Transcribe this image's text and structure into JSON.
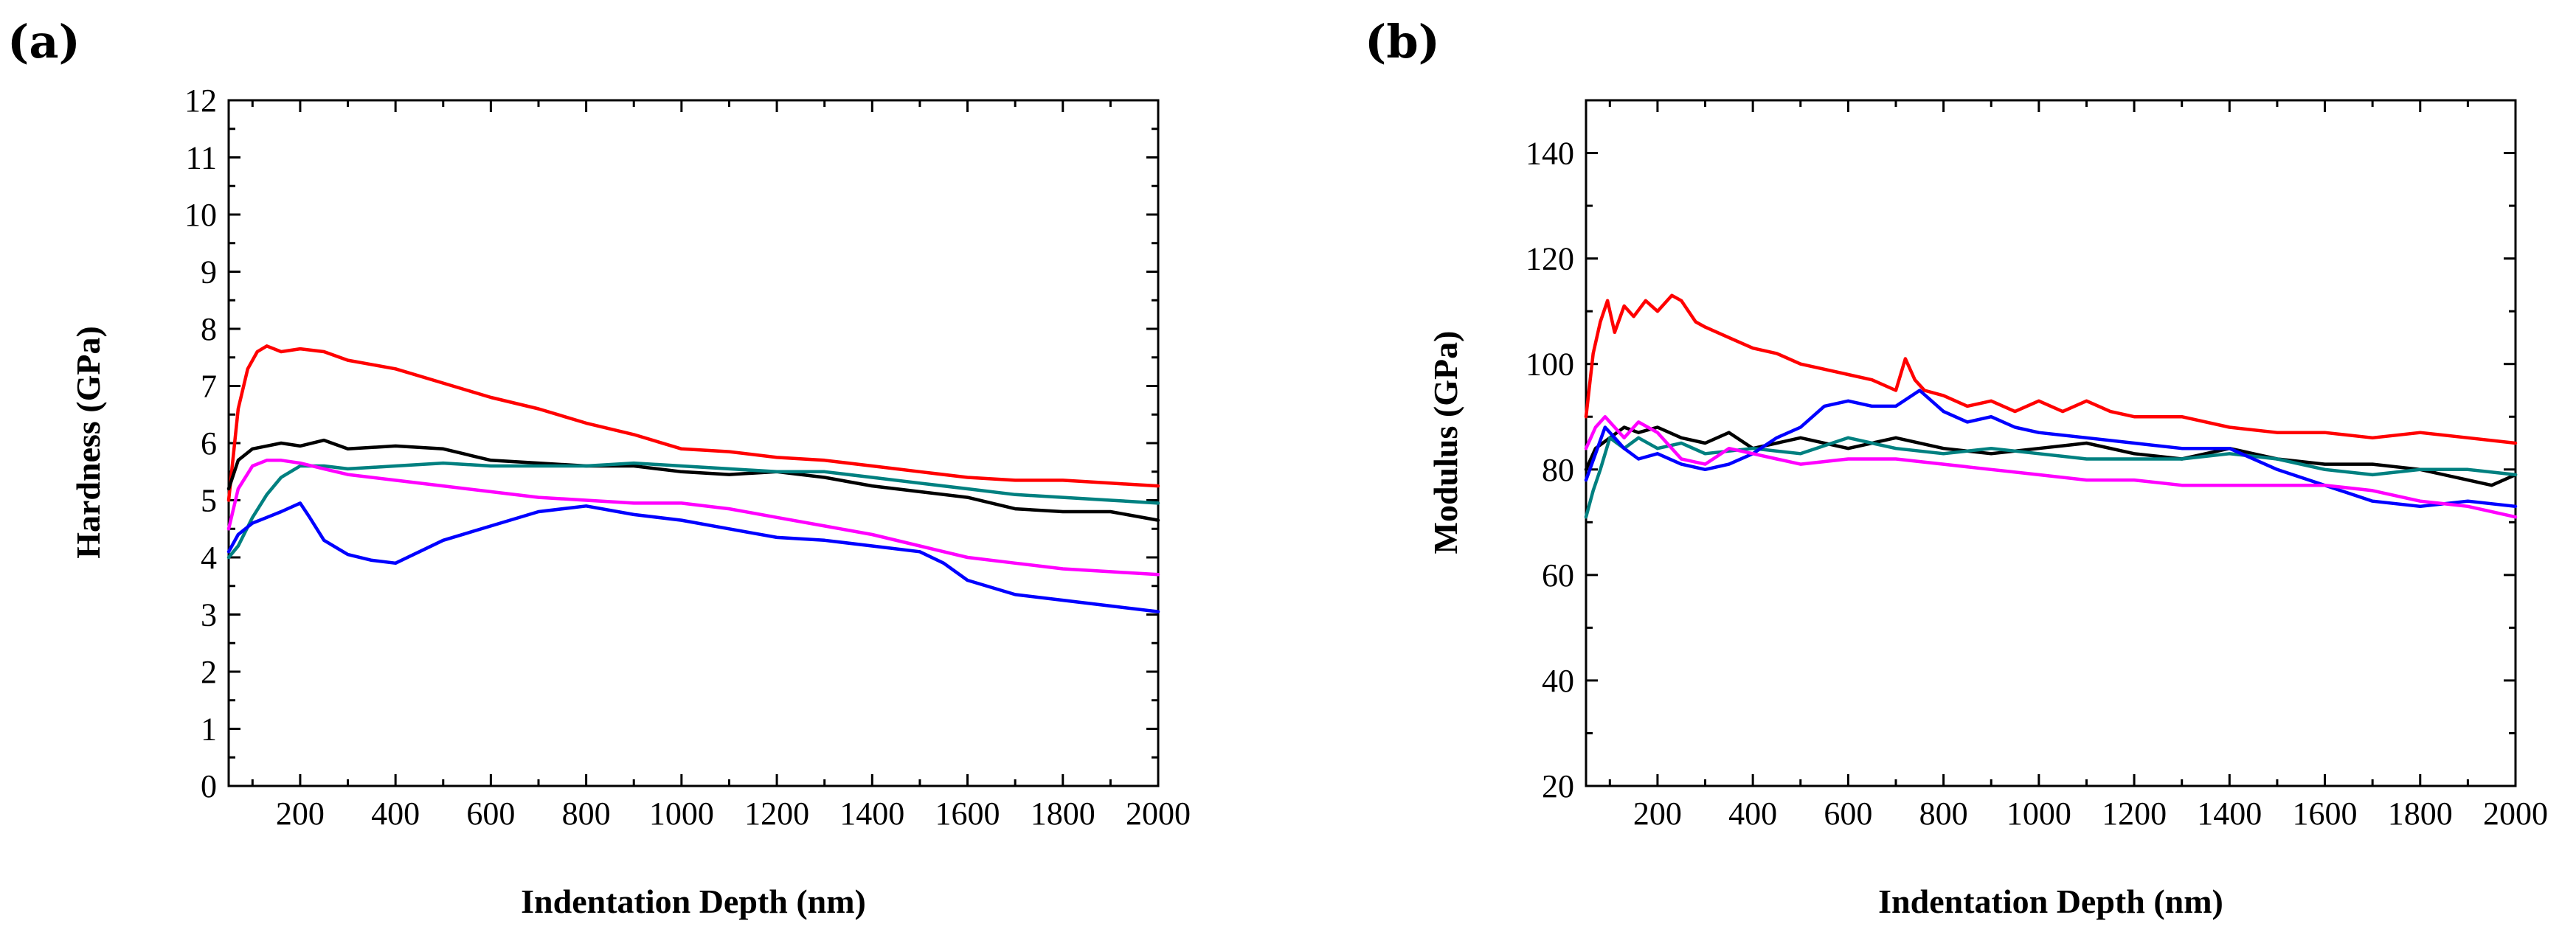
{
  "chart_data": [
    {
      "type": "line",
      "panel_label": "(a)",
      "xlabel": "Indentation Depth (nm)",
      "ylabel": "Hardness (GPa)",
      "xlim": [
        50,
        2000
      ],
      "ylim": [
        0,
        12
      ],
      "xticks": [
        "200",
        "400",
        "600",
        "800",
        "1000",
        "1200",
        "1400",
        "1600",
        "1800",
        "2000"
      ],
      "yticks": [
        "0",
        "1",
        "2",
        "3",
        "4",
        "5",
        "6",
        "7",
        "8",
        "9",
        "10",
        "11",
        "12"
      ],
      "series": [
        {
          "name": "red",
          "color": "#ff0000",
          "x": [
            50,
            70,
            90,
            110,
            130,
            160,
            200,
            250,
            300,
            400,
            500,
            600,
            700,
            800,
            900,
            1000,
            1100,
            1200,
            1300,
            1400,
            1500,
            1600,
            1700,
            1800,
            1900,
            2000
          ],
          "y": [
            5.0,
            6.6,
            7.3,
            7.6,
            7.7,
            7.6,
            7.65,
            7.6,
            7.45,
            7.3,
            7.05,
            6.8,
            6.6,
            6.35,
            6.15,
            5.9,
            5.85,
            5.75,
            5.7,
            5.6,
            5.5,
            5.4,
            5.35,
            5.35,
            5.3,
            5.25
          ]
        },
        {
          "name": "black",
          "color": "#000000",
          "x": [
            50,
            70,
            100,
            130,
            160,
            200,
            250,
            300,
            400,
            500,
            600,
            700,
            800,
            900,
            1000,
            1100,
            1200,
            1300,
            1400,
            1500,
            1600,
            1700,
            1800,
            1900,
            2000
          ],
          "y": [
            5.2,
            5.7,
            5.9,
            5.95,
            6.0,
            5.95,
            6.05,
            5.9,
            5.95,
            5.9,
            5.7,
            5.65,
            5.6,
            5.6,
            5.5,
            5.45,
            5.5,
            5.4,
            5.25,
            5.15,
            5.05,
            4.85,
            4.8,
            4.8,
            4.65
          ]
        },
        {
          "name": "teal",
          "color": "#008080",
          "x": [
            50,
            70,
            100,
            130,
            160,
            200,
            250,
            300,
            400,
            500,
            600,
            700,
            800,
            900,
            1000,
            1100,
            1200,
            1300,
            1400,
            1500,
            1600,
            1700,
            1800,
            1900,
            2000
          ],
          "y": [
            4.0,
            4.2,
            4.7,
            5.1,
            5.4,
            5.6,
            5.6,
            5.55,
            5.6,
            5.65,
            5.6,
            5.6,
            5.6,
            5.65,
            5.6,
            5.55,
            5.5,
            5.5,
            5.4,
            5.3,
            5.2,
            5.1,
            5.05,
            5.0,
            4.95
          ]
        },
        {
          "name": "magenta",
          "color": "#ff00ff",
          "x": [
            50,
            70,
            100,
            130,
            160,
            200,
            250,
            300,
            400,
            500,
            600,
            700,
            800,
            900,
            1000,
            1100,
            1200,
            1300,
            1400,
            1500,
            1600,
            1700,
            1800,
            1900,
            2000
          ],
          "y": [
            4.5,
            5.2,
            5.6,
            5.7,
            5.7,
            5.65,
            5.55,
            5.45,
            5.35,
            5.25,
            5.15,
            5.05,
            5.0,
            4.95,
            4.95,
            4.85,
            4.7,
            4.55,
            4.4,
            4.2,
            4.0,
            3.9,
            3.8,
            3.75,
            3.7
          ]
        },
        {
          "name": "blue",
          "color": "#0000ff",
          "x": [
            50,
            70,
            100,
            130,
            160,
            200,
            220,
            250,
            300,
            350,
            400,
            450,
            500,
            600,
            700,
            800,
            900,
            1000,
            1100,
            1200,
            1300,
            1400,
            1500,
            1550,
            1600,
            1700,
            1800,
            1900,
            2000
          ],
          "y": [
            4.1,
            4.4,
            4.6,
            4.7,
            4.8,
            4.95,
            4.7,
            4.3,
            4.05,
            3.95,
            3.9,
            4.1,
            4.3,
            4.55,
            4.8,
            4.9,
            4.75,
            4.65,
            4.5,
            4.35,
            4.3,
            4.2,
            4.1,
            3.9,
            3.6,
            3.35,
            3.25,
            3.15,
            3.05
          ]
        }
      ]
    },
    {
      "type": "line",
      "panel_label": "(b)",
      "xlabel": "Indentation Depth (nm)",
      "ylabel": "Modulus (GPa)",
      "xlim": [
        50,
        2000
      ],
      "ylim": [
        20,
        150
      ],
      "xticks": [
        "200",
        "400",
        "600",
        "800",
        "1000",
        "1200",
        "1400",
        "1600",
        "1800",
        "2000"
      ],
      "yticks": [
        "20",
        "40",
        "60",
        "80",
        "100",
        "120",
        "140"
      ],
      "series": [
        {
          "name": "red",
          "color": "#ff0000",
          "x": [
            50,
            65,
            80,
            95,
            110,
            130,
            150,
            175,
            200,
            230,
            250,
            280,
            300,
            350,
            400,
            450,
            500,
            550,
            600,
            650,
            700,
            720,
            740,
            760,
            800,
            850,
            900,
            950,
            1000,
            1050,
            1100,
            1150,
            1200,
            1300,
            1400,
            1500,
            1600,
            1700,
            1800,
            1900,
            2000
          ],
          "y": [
            90,
            102,
            108,
            112,
            106,
            111,
            109,
            112,
            110,
            113,
            112,
            108,
            107,
            105,
            103,
            102,
            100,
            99,
            98,
            97,
            95,
            101,
            97,
            95,
            94,
            92,
            93,
            91,
            93,
            91,
            93,
            91,
            90,
            90,
            88,
            87,
            87,
            86,
            87,
            86,
            85
          ]
        },
        {
          "name": "black",
          "color": "#000000",
          "x": [
            50,
            70,
            100,
            130,
            160,
            200,
            250,
            300,
            350,
            400,
            450,
            500,
            600,
            700,
            800,
            900,
            1000,
            1100,
            1200,
            1300,
            1400,
            1500,
            1600,
            1700,
            1800,
            1900,
            1950,
            2000
          ],
          "y": [
            80,
            84,
            86,
            88,
            87,
            88,
            86,
            85,
            87,
            84,
            85,
            86,
            84,
            86,
            84,
            83,
            84,
            85,
            83,
            82,
            84,
            82,
            81,
            81,
            80,
            78,
            77,
            79
          ]
        },
        {
          "name": "teal",
          "color": "#008080",
          "x": [
            50,
            65,
            80,
            100,
            130,
            160,
            200,
            250,
            300,
            400,
            500,
            600,
            700,
            800,
            900,
            1000,
            1100,
            1200,
            1300,
            1400,
            1500,
            1600,
            1700,
            1800,
            1900,
            2000
          ],
          "y": [
            71,
            76,
            80,
            86,
            84,
            86,
            84,
            85,
            83,
            84,
            83,
            86,
            84,
            83,
            84,
            83,
            82,
            82,
            82,
            83,
            82,
            80,
            79,
            80,
            80,
            79
          ]
        },
        {
          "name": "blue",
          "color": "#0000ff",
          "x": [
            50,
            70,
            90,
            110,
            130,
            160,
            200,
            250,
            300,
            350,
            400,
            450,
            500,
            550,
            600,
            650,
            700,
            750,
            800,
            850,
            900,
            950,
            1000,
            1100,
            1200,
            1300,
            1400,
            1500,
            1600,
            1700,
            1800,
            1900,
            2000
          ],
          "y": [
            78,
            83,
            88,
            86,
            84,
            82,
            83,
            81,
            80,
            81,
            83,
            86,
            88,
            92,
            93,
            92,
            92,
            95,
            91,
            89,
            90,
            88,
            87,
            86,
            85,
            84,
            84,
            80,
            77,
            74,
            73,
            74,
            73
          ]
        },
        {
          "name": "magenta",
          "color": "#ff00ff",
          "x": [
            50,
            70,
            90,
            110,
            130,
            160,
            200,
            250,
            300,
            350,
            400,
            450,
            500,
            600,
            700,
            800,
            900,
            1000,
            1100,
            1200,
            1300,
            1400,
            1500,
            1600,
            1700,
            1800,
            1900,
            2000
          ],
          "y": [
            84,
            88,
            90,
            88,
            86,
            89,
            87,
            82,
            81,
            84,
            83,
            82,
            81,
            82,
            82,
            81,
            80,
            79,
            78,
            78,
            77,
            77,
            77,
            77,
            76,
            74,
            73,
            71
          ]
        }
      ]
    }
  ]
}
